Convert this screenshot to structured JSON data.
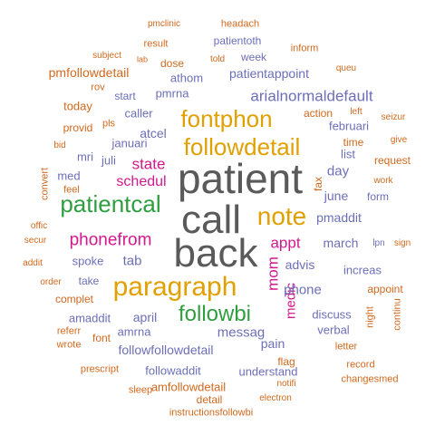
{
  "cloud": {
    "words": [
      {
        "text": "patient",
        "color": "#5a5a5a",
        "rotated": false
      },
      {
        "text": "call",
        "color": "#5a5a5a",
        "rotated": false
      },
      {
        "text": "back",
        "color": "#5a5a5a",
        "rotated": false
      },
      {
        "text": "paragraph",
        "color": "#e0a000",
        "rotated": false
      },
      {
        "text": "note",
        "color": "#e0a000",
        "rotated": false
      },
      {
        "text": "fontphon",
        "color": "#e0a000",
        "rotated": false
      },
      {
        "text": "followdetail",
        "color": "#e0a000",
        "rotated": false
      },
      {
        "text": "patientcal",
        "color": "#2f9e3f",
        "rotated": false
      },
      {
        "text": "followbi",
        "color": "#2f9e3f",
        "rotated": false
      },
      {
        "text": "phonefrom",
        "color": "#d2188f",
        "rotated": false
      },
      {
        "text": "appt",
        "color": "#d2188f",
        "rotated": false
      },
      {
        "text": "state",
        "color": "#d2188f",
        "rotated": false
      },
      {
        "text": "schedul",
        "color": "#d2188f",
        "rotated": false
      },
      {
        "text": "mom",
        "color": "#d2188f",
        "rotated": true
      },
      {
        "text": "medic",
        "color": "#d2188f",
        "rotated": true
      },
      {
        "text": "arialnormaldefault",
        "color": "#6c6fb8",
        "rotated": false
      },
      {
        "text": "patientappoint",
        "color": "#6c6fb8",
        "rotated": false
      },
      {
        "text": "pmaddit",
        "color": "#6c6fb8",
        "rotated": false
      },
      {
        "text": "tab",
        "color": "#6c6fb8",
        "rotated": false
      },
      {
        "text": "advis",
        "color": "#6c6fb8",
        "rotated": false
      },
      {
        "text": "messag",
        "color": "#6c6fb8",
        "rotated": false
      },
      {
        "text": "phone",
        "color": "#6c6fb8",
        "rotated": false
      },
      {
        "text": "march",
        "color": "#6c6fb8",
        "rotated": false
      },
      {
        "text": "june",
        "color": "#6c6fb8",
        "rotated": false
      },
      {
        "text": "day",
        "color": "#6c6fb8",
        "rotated": false
      },
      {
        "text": "atcel",
        "color": "#6c6fb8",
        "rotated": false
      },
      {
        "text": "pmrna",
        "color": "#6c6fb8",
        "rotated": false
      },
      {
        "text": "athom",
        "color": "#6c6fb8",
        "rotated": false
      },
      {
        "text": "week",
        "color": "#6c6fb8",
        "rotated": false
      },
      {
        "text": "caller",
        "color": "#6c6fb8",
        "rotated": false
      },
      {
        "text": "januari",
        "color": "#6c6fb8",
        "rotated": false
      },
      {
        "text": "juli",
        "color": "#6c6fb8",
        "rotated": false
      },
      {
        "text": "mri",
        "color": "#6c6fb8",
        "rotated": false
      },
      {
        "text": "spoke",
        "color": "#6c6fb8",
        "rotated": false
      },
      {
        "text": "take",
        "color": "#6c6fb8",
        "rotated": false
      },
      {
        "text": "april",
        "color": "#6c6fb8",
        "rotated": false
      },
      {
        "text": "amaddit",
        "color": "#6c6fb8",
        "rotated": false
      },
      {
        "text": "amrna",
        "color": "#6c6fb8",
        "rotated": false
      },
      {
        "text": "followfollowdetail",
        "color": "#6c6fb8",
        "rotated": false
      },
      {
        "text": "followaddit",
        "color": "#6c6fb8",
        "rotated": false
      },
      {
        "text": "understand",
        "color": "#6c6fb8",
        "rotated": false
      },
      {
        "text": "pain",
        "color": "#6c6fb8",
        "rotated": false
      },
      {
        "text": "discuss",
        "color": "#6c6fb8",
        "rotated": false
      },
      {
        "text": "verbal",
        "color": "#6c6fb8",
        "rotated": false
      },
      {
        "text": "increas",
        "color": "#6c6fb8",
        "rotated": false
      },
      {
        "text": "februari",
        "color": "#6c6fb8",
        "rotated": false
      },
      {
        "text": "list",
        "color": "#6c6fb8",
        "rotated": false
      },
      {
        "text": "form",
        "color": "#6c6fb8",
        "rotated": false
      },
      {
        "text": "start",
        "color": "#6c6fb8",
        "rotated": false
      },
      {
        "text": "patientoth",
        "color": "#6c6fb8",
        "rotated": false
      },
      {
        "text": "med",
        "color": "#6c6fb8",
        "rotated": false
      },
      {
        "text": "lpn",
        "color": "#6c6fb8",
        "rotated": false
      },
      {
        "text": "pmfollowdetail",
        "color": "#d2691e",
        "rotated": false
      },
      {
        "text": "dose",
        "color": "#d2691e",
        "rotated": false
      },
      {
        "text": "today",
        "color": "#d2691e",
        "rotated": false
      },
      {
        "text": "provid",
        "color": "#d2691e",
        "rotated": false
      },
      {
        "text": "action",
        "color": "#d2691e",
        "rotated": false
      },
      {
        "text": "time",
        "color": "#d2691e",
        "rotated": false
      },
      {
        "text": "request",
        "color": "#d2691e",
        "rotated": false
      },
      {
        "text": "appoint",
        "color": "#d2691e",
        "rotated": false
      },
      {
        "text": "flag",
        "color": "#d2691e",
        "rotated": false
      },
      {
        "text": "font",
        "color": "#d2691e",
        "rotated": false
      },
      {
        "text": "amfollowdetail",
        "color": "#d2691e",
        "rotated": false
      },
      {
        "text": "detail",
        "color": "#d2691e",
        "rotated": false
      },
      {
        "text": "complet",
        "color": "#d2691e",
        "rotated": false
      },
      {
        "text": "fax",
        "color": "#d2691e",
        "rotated": true
      },
      {
        "text": "convert",
        "color": "#d2691e",
        "rotated": true
      },
      {
        "text": "result",
        "color": "#d2691e",
        "rotated": false
      },
      {
        "text": "inform",
        "color": "#d2691e",
        "rotated": false
      },
      {
        "text": "subject",
        "color": "#d2691e",
        "rotated": false
      },
      {
        "text": "pmclinic",
        "color": "#d2691e",
        "rotated": false
      },
      {
        "text": "headach",
        "color": "#d2691e",
        "rotated": false
      },
      {
        "text": "lab",
        "color": "#d2691e",
        "rotated": false
      },
      {
        "text": "told",
        "color": "#d2691e",
        "rotated": false
      },
      {
        "text": "queu",
        "color": "#d2691e",
        "rotated": false
      },
      {
        "text": "rov",
        "color": "#d2691e",
        "rotated": false
      },
      {
        "text": "left",
        "color": "#d2691e",
        "rotated": false
      },
      {
        "text": "seizur",
        "color": "#d2691e",
        "rotated": false
      },
      {
        "text": "give",
        "color": "#d2691e",
        "rotated": false
      },
      {
        "text": "work",
        "color": "#d2691e",
        "rotated": false
      },
      {
        "text": "pls",
        "color": "#d2691e",
        "rotated": false
      },
      {
        "text": "bid",
        "color": "#d2691e",
        "rotated": false
      },
      {
        "text": "feel",
        "color": "#d2691e",
        "rotated": false
      },
      {
        "text": "offic",
        "color": "#d2691e",
        "rotated": false
      },
      {
        "text": "secur",
        "color": "#d2691e",
        "rotated": false
      },
      {
        "text": "addit",
        "color": "#d2691e",
        "rotated": false
      },
      {
        "text": "order",
        "color": "#d2691e",
        "rotated": false
      },
      {
        "text": "sign",
        "color": "#d2691e",
        "rotated": false
      },
      {
        "text": "continu",
        "color": "#d2691e",
        "rotated": true
      },
      {
        "text": "night",
        "color": "#d2691e",
        "rotated": true
      },
      {
        "text": "referr",
        "color": "#d2691e",
        "rotated": false
      },
      {
        "text": "wrote",
        "color": "#d2691e",
        "rotated": false
      },
      {
        "text": "prescript",
        "color": "#d2691e",
        "rotated": false
      },
      {
        "text": "letter",
        "color": "#d2691e",
        "rotated": false
      },
      {
        "text": "record",
        "color": "#d2691e",
        "rotated": false
      },
      {
        "text": "changesmed",
        "color": "#d2691e",
        "rotated": false
      },
      {
        "text": "sleep",
        "color": "#d2691e",
        "rotated": false
      },
      {
        "text": "notifi",
        "color": "#d2691e",
        "rotated": false
      },
      {
        "text": "electron",
        "color": "#d2691e",
        "rotated": false
      },
      {
        "text": "instructionsfollowbi",
        "color": "#d2691e",
        "rotated": false
      }
    ]
  }
}
